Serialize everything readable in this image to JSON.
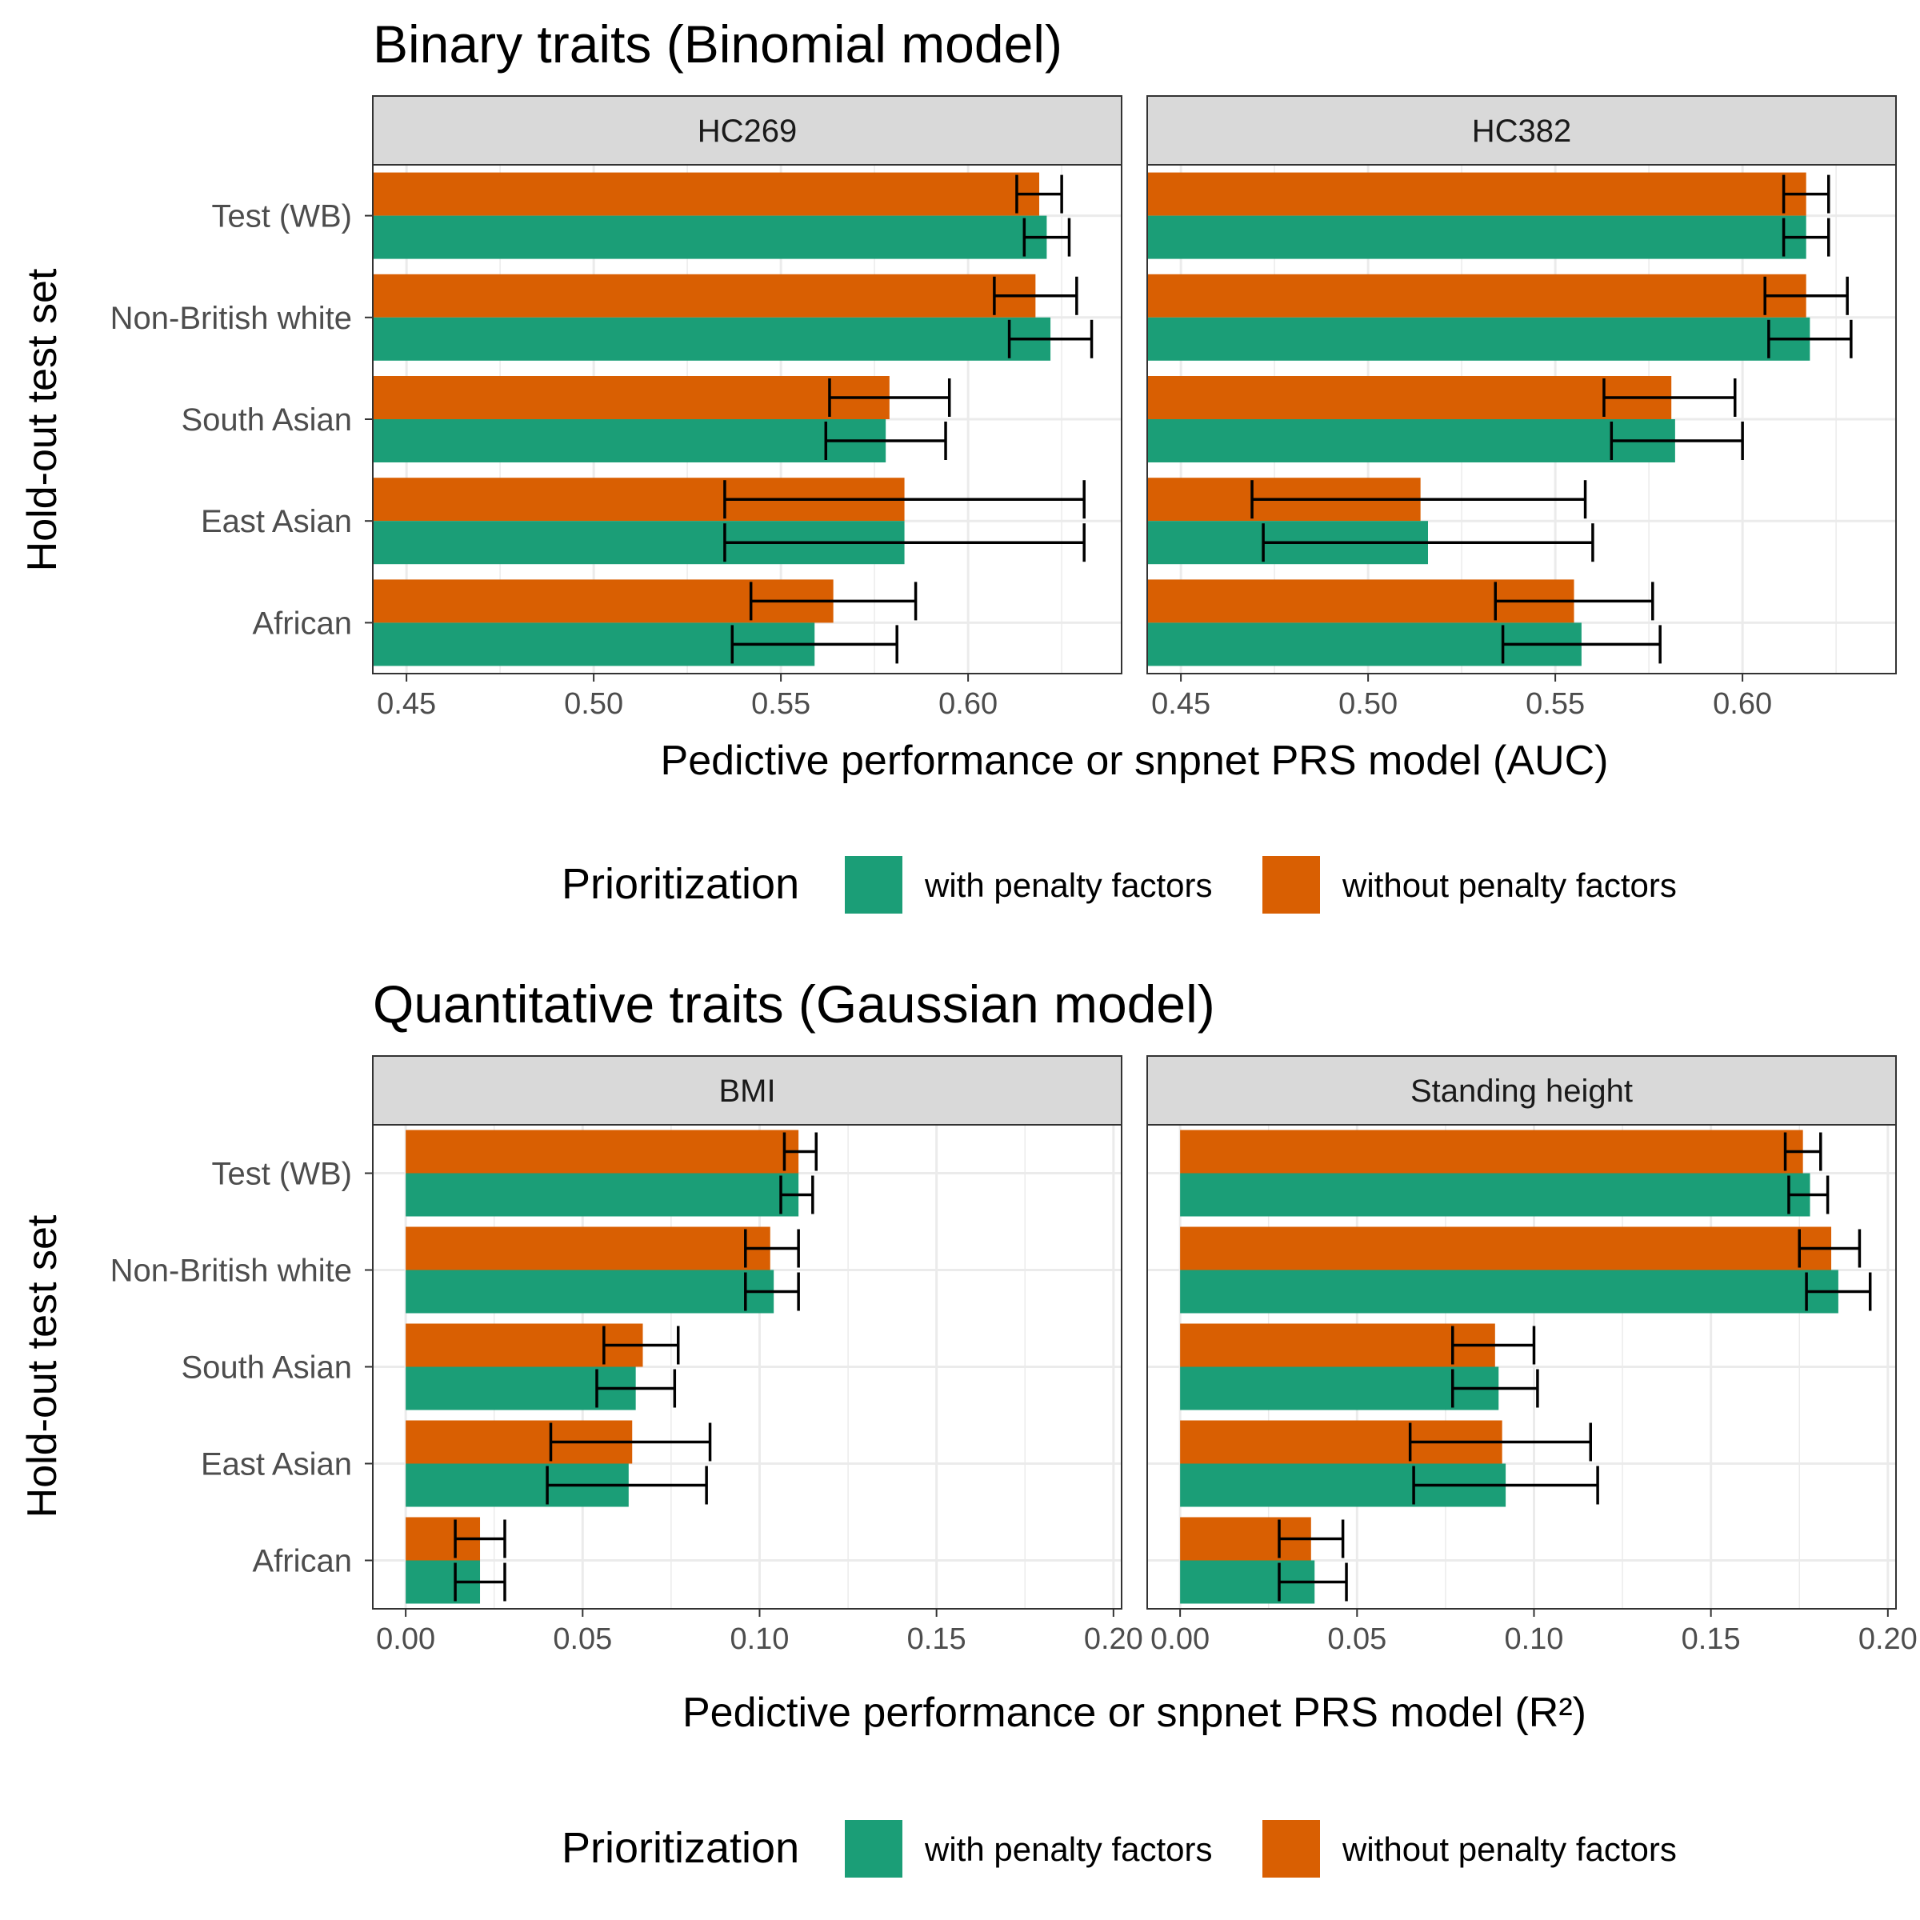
{
  "sections": [
    {
      "title": "Binary traits (Binomial model)",
      "y_axis_label": "Hold-out test set",
      "x_axis_label": "Pedictive performance or snpnet PRS model (AUC)",
      "legend": {
        "title": "Prioritization",
        "items": [
          {
            "label": "with penalty factors",
            "color": "#1B9E77"
          },
          {
            "label": "without penalty factors",
            "color": "#D95F02"
          }
        ]
      }
    },
    {
      "title": "Quantitative traits (Gaussian model)",
      "y_axis_label": "Hold-out test set",
      "x_axis_label": "Pedictive performance or snpnet PRS model (R²)",
      "legend": {
        "title": "Prioritization",
        "items": [
          {
            "label": "with penalty factors",
            "color": "#1B9E77"
          },
          {
            "label": "without penalty factors",
            "color": "#D95F02"
          }
        ]
      }
    }
  ],
  "chart_data": [
    {
      "type": "bar",
      "orientation": "horizontal",
      "title": "Binary traits (Binomial model)",
      "metric": "AUC",
      "ylabel": "Hold-out test set",
      "xlabel": "Pedictive performance or snpnet PRS model (AUC)",
      "xlim": [
        0.441,
        0.641
      ],
      "xticks": [
        0.45,
        0.5,
        0.55,
        0.6
      ],
      "xtick_labels": [
        "0.45",
        "0.50",
        "0.55",
        "0.60"
      ],
      "bars_start": 0.441,
      "grid": true,
      "legend_position": "bottom",
      "categories": [
        "Test (WB)",
        "Non-British white",
        "South Asian",
        "East Asian",
        "African"
      ],
      "panels": [
        {
          "name": "HC269",
          "series": [
            {
              "name": "with penalty factors",
              "values": [
                0.621,
                0.622,
                0.578,
                0.583,
                0.559
              ],
              "ci_low": [
                0.615,
                0.611,
                0.562,
                0.535,
                0.537
              ],
              "ci_high": [
                0.627,
                0.633,
                0.594,
                0.631,
                0.581
              ]
            },
            {
              "name": "without penalty factors",
              "values": [
                0.619,
                0.618,
                0.579,
                0.583,
                0.564
              ],
              "ci_low": [
                0.613,
                0.607,
                0.563,
                0.535,
                0.542
              ],
              "ci_high": [
                0.625,
                0.629,
                0.595,
                0.631,
                0.586
              ]
            }
          ]
        },
        {
          "name": "HC382",
          "series": [
            {
              "name": "with penalty factors",
              "values": [
                0.617,
                0.618,
                0.582,
                0.516,
                0.557
              ],
              "ci_low": [
                0.611,
                0.607,
                0.565,
                0.472,
                0.536
              ],
              "ci_high": [
                0.623,
                0.629,
                0.6,
                0.56,
                0.578
              ]
            },
            {
              "name": "without penalty factors",
              "values": [
                0.617,
                0.617,
                0.581,
                0.514,
                0.555
              ],
              "ci_low": [
                0.611,
                0.606,
                0.563,
                0.469,
                0.534
              ],
              "ci_high": [
                0.623,
                0.628,
                0.598,
                0.558,
                0.576
              ]
            }
          ]
        }
      ]
    },
    {
      "type": "bar",
      "orientation": "horizontal",
      "title": "Quantitative traits (Gaussian model)",
      "metric": "R2",
      "ylabel": "Hold-out test set",
      "xlabel": "Pedictive performance or snpnet PRS model (R²)",
      "xlim": [
        -0.0093,
        0.2023
      ],
      "xticks": [
        0.0,
        0.05,
        0.1,
        0.15,
        0.2
      ],
      "xtick_labels": [
        "0.00",
        "0.05",
        "0.10",
        "0.15",
        "0.20"
      ],
      "bars_start": 0,
      "grid": true,
      "legend_position": "bottom",
      "categories": [
        "Test (WB)",
        "Non-British white",
        "South Asian",
        "East Asian",
        "African"
      ],
      "panels": [
        {
          "name": "BMI",
          "series": [
            {
              "name": "with penalty factors",
              "values": [
                0.111,
                0.104,
                0.065,
                0.063,
                0.021
              ],
              "ci_low": [
                0.106,
                0.096,
                0.054,
                0.04,
                0.014
              ],
              "ci_high": [
                0.115,
                0.111,
                0.076,
                0.085,
                0.028
              ]
            },
            {
              "name": "without penalty factors",
              "values": [
                0.111,
                0.103,
                0.067,
                0.064,
                0.021
              ],
              "ci_low": [
                0.107,
                0.096,
                0.056,
                0.041,
                0.014
              ],
              "ci_high": [
                0.116,
                0.111,
                0.077,
                0.086,
                0.028
              ]
            }
          ]
        },
        {
          "name": "Standing height",
          "series": [
            {
              "name": "with penalty factors",
              "values": [
                0.178,
                0.186,
                0.09,
                0.092,
                0.038
              ],
              "ci_low": [
                0.172,
                0.177,
                0.077,
                0.066,
                0.028
              ],
              "ci_high": [
                0.183,
                0.195,
                0.101,
                0.118,
                0.047
              ]
            },
            {
              "name": "without penalty factors",
              "values": [
                0.176,
                0.184,
                0.089,
                0.091,
                0.037
              ],
              "ci_low": [
                0.171,
                0.175,
                0.077,
                0.065,
                0.028
              ],
              "ci_high": [
                0.181,
                0.192,
                0.1,
                0.116,
                0.046
              ]
            }
          ]
        }
      ]
    }
  ]
}
